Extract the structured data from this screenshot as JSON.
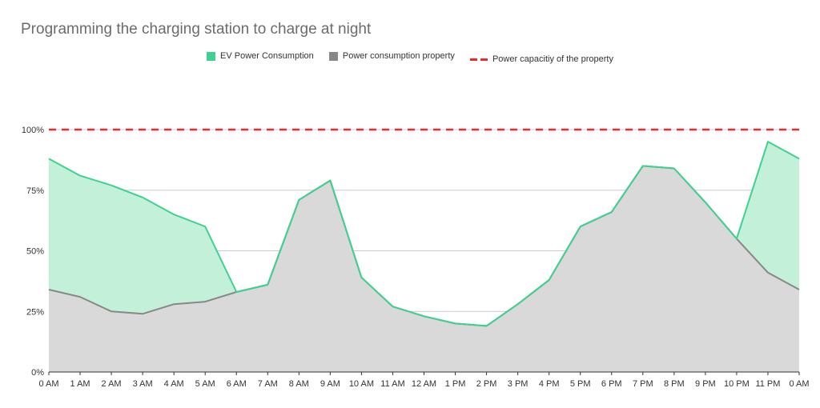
{
  "chart_data": {
    "type": "area",
    "title": "Programming the charging station to charge at night",
    "categories": [
      "0 AM",
      "1 AM",
      "2 AM",
      "3 AM",
      "4 AM",
      "5 AM",
      "6 AM",
      "7 AM",
      "8 AM",
      "9 AM",
      "10 AM",
      "11 AM",
      "12 AM",
      "1 PM",
      "2 PM",
      "3 PM",
      "4 PM",
      "5 PM",
      "6 PM",
      "7 PM",
      "8 PM",
      "9 PM",
      "10 PM",
      "11 PM",
      "0 AM"
    ],
    "series": [
      {
        "name": "EV Power Consumption",
        "color": "#3dd28f",
        "fill": "#c3f0d9",
        "values": [
          88,
          81,
          77,
          72,
          65,
          60,
          33,
          36,
          71,
          79,
          39,
          27,
          23,
          20,
          19,
          28,
          38,
          60,
          66,
          85,
          84,
          70,
          55,
          95,
          88
        ]
      },
      {
        "name": "Power consumption property",
        "color": "#888888",
        "fill": "#d9d9d9",
        "values": [
          34,
          31,
          25,
          24,
          28,
          29,
          33,
          36,
          71,
          79,
          39,
          27,
          23,
          20,
          19,
          28,
          38,
          60,
          66,
          85,
          84,
          70,
          55,
          41,
          34
        ]
      },
      {
        "name": "Power capacitiy of the property",
        "color": "#ee2b2b",
        "style": "dashed",
        "values": [
          100,
          100,
          100,
          100,
          100,
          100,
          100,
          100,
          100,
          100,
          100,
          100,
          100,
          100,
          100,
          100,
          100,
          100,
          100,
          100,
          100,
          100,
          100,
          100,
          100
        ]
      }
    ],
    "y_ticks": [
      "0%",
      "25%",
      "50%",
      "75%",
      "100%"
    ],
    "y_tick_values": [
      0,
      25,
      50,
      75,
      100
    ],
    "ylim": [
      0,
      100
    ],
    "legend_position": "top",
    "grid": true
  }
}
